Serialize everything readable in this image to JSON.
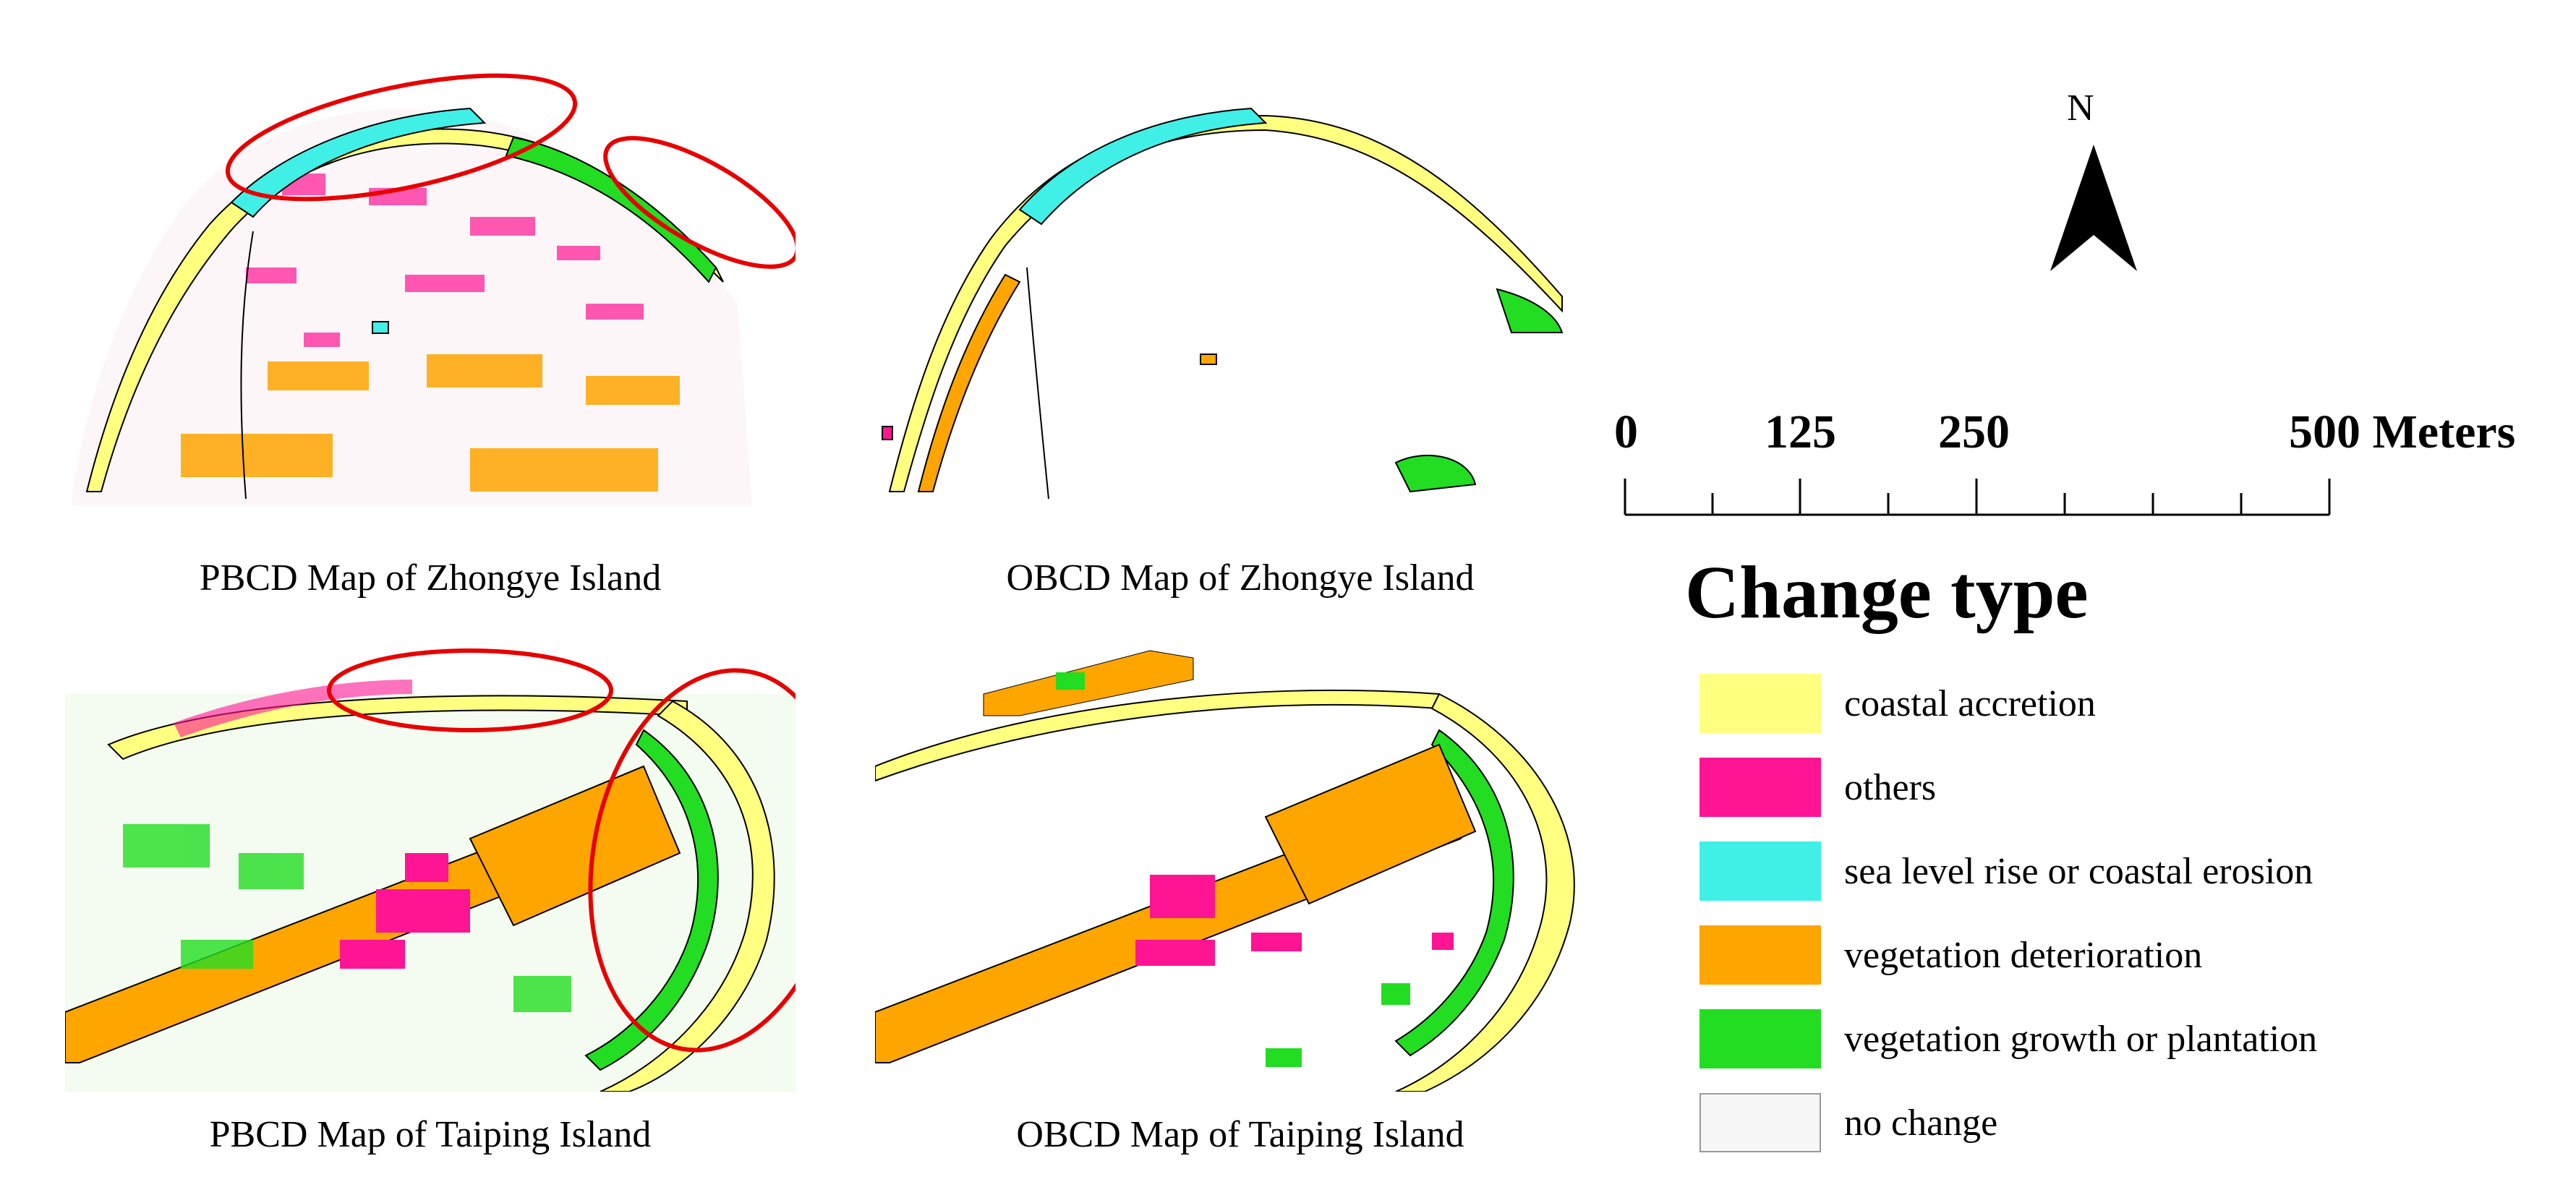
{
  "panels": [
    {
      "caption": "PBCD Map of Zhongye Island"
    },
    {
      "caption": "OBCD Map of Zhongye Island"
    },
    {
      "caption": "PBCD Map of Taiping Island"
    },
    {
      "caption": "OBCD Map of Taiping Island"
    }
  ],
  "north_arrow": {
    "label": "N"
  },
  "scale_bar": {
    "ticks": [
      "0",
      "125",
      "250",
      "500 Meters"
    ]
  },
  "legend": {
    "title": "Change type",
    "items": [
      {
        "label": "coastal accretion",
        "color": "#ffff80"
      },
      {
        "label": "others",
        "color": "#ff1493"
      },
      {
        "label": "sea level rise or coastal erosion",
        "color": "#40f0e6"
      },
      {
        "label": "vegetation deterioration",
        "color": "#ffa500"
      },
      {
        "label": "vegetation growth or plantation",
        "color": "#22dd22"
      },
      {
        "label": "no change",
        "color": "#f7f7f7"
      }
    ]
  },
  "colors": {
    "highlight_ellipse": "#e60000",
    "outline": "#000000"
  }
}
